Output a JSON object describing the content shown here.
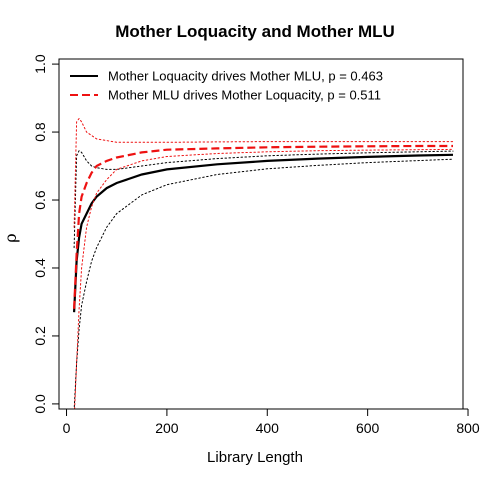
{
  "chart_data": {
    "type": "line",
    "title": "Mother Loquacity and Mother MLU",
    "xlabel": "Library Length",
    "ylabel": "ρ",
    "xlim": [
      0,
      800
    ],
    "ylim": [
      0,
      1
    ],
    "x_ticks": [
      0,
      200,
      400,
      600,
      800
    ],
    "y_ticks": [
      0.0,
      0.2,
      0.4,
      0.6,
      0.8,
      1.0
    ],
    "x_tick_labels": [
      "0",
      "200",
      "400",
      "600",
      "800"
    ],
    "y_tick_labels": [
      "0.0",
      "0.2",
      "0.4",
      "0.6",
      "0.8",
      "1.0"
    ],
    "legend_position": "top-left",
    "grid": false,
    "series": [
      {
        "name": "Mother Loquacity drives Mother MLU, p = 0.463",
        "color": "#000000",
        "style": "solid",
        "x": [
          15,
          20,
          25,
          30,
          40,
          50,
          60,
          80,
          100,
          150,
          200,
          300,
          400,
          500,
          600,
          700,
          770
        ],
        "mean": [
          0.27,
          0.42,
          0.49,
          0.53,
          0.56,
          0.59,
          0.61,
          0.635,
          0.65,
          0.675,
          0.69,
          0.705,
          0.715,
          0.722,
          0.727,
          0.731,
          0.733
        ],
        "upper": [
          0.46,
          0.73,
          0.745,
          0.74,
          0.715,
          0.7,
          0.695,
          0.69,
          0.69,
          0.7,
          0.71,
          0.722,
          0.73,
          0.735,
          0.739,
          0.742,
          0.744
        ],
        "lower": [
          -0.02,
          0.12,
          0.22,
          0.29,
          0.36,
          0.42,
          0.46,
          0.52,
          0.56,
          0.615,
          0.645,
          0.675,
          0.692,
          0.702,
          0.71,
          0.716,
          0.72
        ]
      },
      {
        "name": "Mother MLU drives Mother Loquacity, p = 0.511",
        "color": "#ee1111",
        "style": "dashed",
        "x": [
          15,
          20,
          25,
          30,
          40,
          50,
          60,
          80,
          100,
          150,
          200,
          300,
          400,
          500,
          600,
          700,
          770
        ],
        "mean": [
          0.28,
          0.44,
          0.56,
          0.61,
          0.65,
          0.68,
          0.7,
          0.715,
          0.725,
          0.74,
          0.748,
          0.752,
          0.755,
          0.757,
          0.758,
          0.759,
          0.759
        ],
        "upper": [
          0.52,
          0.83,
          0.84,
          0.83,
          0.8,
          0.79,
          0.78,
          0.775,
          0.77,
          0.77,
          0.77,
          0.771,
          0.772,
          0.772,
          0.772,
          0.772,
          0.772
        ],
        "lower": [
          -0.05,
          0.12,
          0.28,
          0.4,
          0.52,
          0.58,
          0.62,
          0.66,
          0.69,
          0.715,
          0.728,
          0.737,
          0.742,
          0.745,
          0.747,
          0.748,
          0.749
        ]
      }
    ]
  }
}
